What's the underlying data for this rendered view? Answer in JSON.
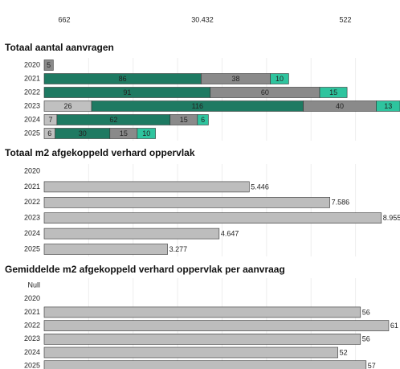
{
  "kpis": [
    "662",
    "30.432",
    "522"
  ],
  "chart_data": [
    {
      "type": "stacked_bar",
      "title": "Totaal aantal aanvragen",
      "categories": [
        "2020",
        "2021",
        "2022",
        "2023",
        "2024",
        "2025"
      ],
      "series": [
        {
          "color": "#c0c0c0",
          "values": [
            null,
            null,
            null,
            26,
            7,
            6
          ]
        },
        {
          "color": "#1e7a62",
          "values": [
            null,
            86,
            91,
            116,
            62,
            30
          ]
        },
        {
          "color": "#8a8a8a",
          "values": [
            5,
            38,
            60,
            40,
            15,
            15
          ]
        },
        {
          "color": "#2ec49e",
          "values": [
            null,
            10,
            15,
            13,
            6,
            10
          ]
        }
      ],
      "xlim": [
        0,
        195
      ]
    },
    {
      "type": "bar",
      "title": "Totaal m2 afgekoppeld verhard oppervlak",
      "categories": [
        "2020",
        "2021",
        "2022",
        "2023",
        "2024",
        "2025"
      ],
      "values": [
        null,
        5446,
        7586,
        8955,
        4647,
        3277
      ],
      "value_labels": [
        null,
        "5.446",
        "7.586",
        "8.955",
        "4.647",
        "3.277"
      ],
      "color": "#bdbdbd",
      "xlim": [
        0,
        9450
      ]
    },
    {
      "type": "bar",
      "title": "Gemiddelde m2 afgekoppeld verhard oppervlak per aanvraag",
      "categories": [
        "Null",
        "2020",
        "2021",
        "2022",
        "2023",
        "2024",
        "2025"
      ],
      "values": [
        null,
        null,
        56,
        61,
        56,
        52,
        57
      ],
      "color": "#bdbdbd",
      "xlim": [
        0,
        63
      ]
    }
  ]
}
